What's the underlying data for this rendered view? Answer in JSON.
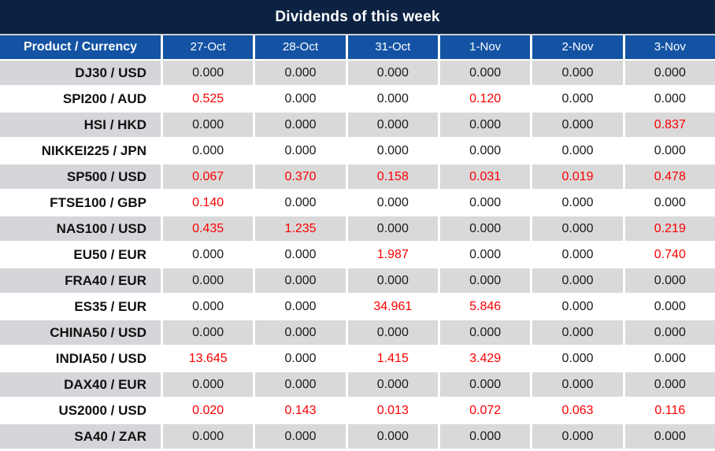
{
  "title": "Dividends of this week",
  "colors": {
    "title_bar_bg": "#0c2242",
    "header_bg": "#1453a4",
    "header_text": "#ffffff",
    "row_gray_product": "#d5d6da",
    "row_gray_cell": "#d9d9d9",
    "row_white": "#ffffff",
    "value_text": "#1a1a1a",
    "product_text": "#111111",
    "value_highlight": "#fb0000",
    "separator": "#ffffff",
    "title_separator": "#cfd1d4"
  },
  "chart_data": {
    "type": "table",
    "title": "Dividends of this week",
    "columns": [
      "Product / Currency",
      "27-Oct",
      "28-Oct",
      "31-Oct",
      "1-Nov",
      "2-Nov",
      "3-Nov"
    ],
    "highlight_color_meaning": "non-zero dividend shown in red",
    "rows": [
      {
        "product": "DJ30 / USD",
        "cells": [
          {
            "value": "0.000",
            "highlight": false
          },
          {
            "value": "0.000",
            "highlight": false
          },
          {
            "value": "0.000",
            "highlight": false
          },
          {
            "value": "0.000",
            "highlight": false
          },
          {
            "value": "0.000",
            "highlight": false
          },
          {
            "value": "0.000",
            "highlight": false
          }
        ]
      },
      {
        "product": "SPI200 / AUD",
        "cells": [
          {
            "value": "0.525",
            "highlight": true
          },
          {
            "value": "0.000",
            "highlight": false
          },
          {
            "value": "0.000",
            "highlight": false
          },
          {
            "value": "0.120",
            "highlight": true
          },
          {
            "value": "0.000",
            "highlight": false
          },
          {
            "value": "0.000",
            "highlight": false
          }
        ]
      },
      {
        "product": "HSI / HKD",
        "cells": [
          {
            "value": "0.000",
            "highlight": false
          },
          {
            "value": "0.000",
            "highlight": false
          },
          {
            "value": "0.000",
            "highlight": false
          },
          {
            "value": "0.000",
            "highlight": false
          },
          {
            "value": "0.000",
            "highlight": false
          },
          {
            "value": "0.837",
            "highlight": true
          }
        ]
      },
      {
        "product": "NIKKEI225 / JPN",
        "cells": [
          {
            "value": "0.000",
            "highlight": false
          },
          {
            "value": "0.000",
            "highlight": false
          },
          {
            "value": "0.000",
            "highlight": false
          },
          {
            "value": "0.000",
            "highlight": false
          },
          {
            "value": "0.000",
            "highlight": false
          },
          {
            "value": "0.000",
            "highlight": false
          }
        ]
      },
      {
        "product": "SP500 / USD",
        "cells": [
          {
            "value": "0.067",
            "highlight": true
          },
          {
            "value": "0.370",
            "highlight": true
          },
          {
            "value": "0.158",
            "highlight": true
          },
          {
            "value": "0.031",
            "highlight": true
          },
          {
            "value": "0.019",
            "highlight": true
          },
          {
            "value": "0.478",
            "highlight": true
          }
        ]
      },
      {
        "product": "FTSE100 / GBP",
        "cells": [
          {
            "value": "0.140",
            "highlight": true
          },
          {
            "value": "0.000",
            "highlight": false
          },
          {
            "value": "0.000",
            "highlight": false
          },
          {
            "value": "0.000",
            "highlight": false
          },
          {
            "value": "0.000",
            "highlight": false
          },
          {
            "value": "0.000",
            "highlight": false
          }
        ]
      },
      {
        "product": "NAS100 / USD",
        "cells": [
          {
            "value": "0.435",
            "highlight": true
          },
          {
            "value": "1.235",
            "highlight": true
          },
          {
            "value": "0.000",
            "highlight": false
          },
          {
            "value": "0.000",
            "highlight": false
          },
          {
            "value": "0.000",
            "highlight": false
          },
          {
            "value": "0.219",
            "highlight": true
          }
        ]
      },
      {
        "product": "EU50 / EUR",
        "cells": [
          {
            "value": "0.000",
            "highlight": false
          },
          {
            "value": "0.000",
            "highlight": false
          },
          {
            "value": "1.987",
            "highlight": true
          },
          {
            "value": "0.000",
            "highlight": false
          },
          {
            "value": "0.000",
            "highlight": false
          },
          {
            "value": "0.740",
            "highlight": true
          }
        ]
      },
      {
        "product": "FRA40 / EUR",
        "cells": [
          {
            "value": "0.000",
            "highlight": false
          },
          {
            "value": "0.000",
            "highlight": false
          },
          {
            "value": "0.000",
            "highlight": false
          },
          {
            "value": "0.000",
            "highlight": false
          },
          {
            "value": "0.000",
            "highlight": false
          },
          {
            "value": "0.000",
            "highlight": false
          }
        ]
      },
      {
        "product": "ES35 / EUR",
        "cells": [
          {
            "value": "0.000",
            "highlight": false
          },
          {
            "value": "0.000",
            "highlight": false
          },
          {
            "value": "34.961",
            "highlight": true
          },
          {
            "value": "5.846",
            "highlight": true
          },
          {
            "value": "0.000",
            "highlight": false
          },
          {
            "value": "0.000",
            "highlight": false
          }
        ]
      },
      {
        "product": "CHINA50 / USD",
        "cells": [
          {
            "value": "0.000",
            "highlight": false
          },
          {
            "value": "0.000",
            "highlight": false
          },
          {
            "value": "0.000",
            "highlight": false
          },
          {
            "value": "0.000",
            "highlight": false
          },
          {
            "value": "0.000",
            "highlight": false
          },
          {
            "value": "0.000",
            "highlight": false
          }
        ]
      },
      {
        "product": "INDIA50 / USD",
        "cells": [
          {
            "value": "13.645",
            "highlight": true
          },
          {
            "value": "0.000",
            "highlight": false
          },
          {
            "value": "1.415",
            "highlight": true
          },
          {
            "value": "3.429",
            "highlight": true
          },
          {
            "value": "0.000",
            "highlight": false
          },
          {
            "value": "0.000",
            "highlight": false
          }
        ]
      },
      {
        "product": "DAX40 / EUR",
        "cells": [
          {
            "value": "0.000",
            "highlight": false
          },
          {
            "value": "0.000",
            "highlight": false
          },
          {
            "value": "0.000",
            "highlight": false
          },
          {
            "value": "0.000",
            "highlight": false
          },
          {
            "value": "0.000",
            "highlight": false
          },
          {
            "value": "0.000",
            "highlight": false
          }
        ]
      },
      {
        "product": "US2000 / USD",
        "cells": [
          {
            "value": "0.020",
            "highlight": true
          },
          {
            "value": "0.143",
            "highlight": true
          },
          {
            "value": "0.013",
            "highlight": true
          },
          {
            "value": "0.072",
            "highlight": true
          },
          {
            "value": "0.063",
            "highlight": true
          },
          {
            "value": "0.116",
            "highlight": true
          }
        ]
      },
      {
        "product": "SA40 / ZAR",
        "cells": [
          {
            "value": "0.000",
            "highlight": false
          },
          {
            "value": "0.000",
            "highlight": false
          },
          {
            "value": "0.000",
            "highlight": false
          },
          {
            "value": "0.000",
            "highlight": false
          },
          {
            "value": "0.000",
            "highlight": false
          },
          {
            "value": "0.000",
            "highlight": false
          }
        ]
      }
    ]
  }
}
